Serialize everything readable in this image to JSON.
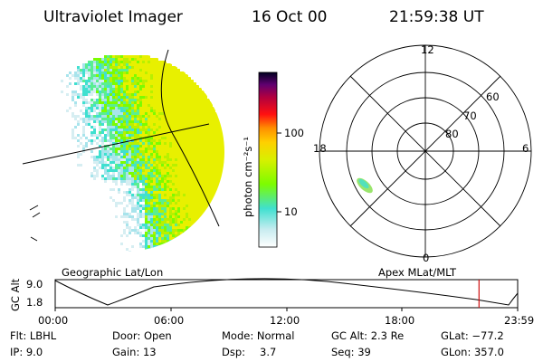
{
  "header": {
    "instrument": "Ultraviolet Imager",
    "date": "16 Oct 00",
    "time": "21:59:38 UT"
  },
  "colorbar": {
    "unit_label": "photon cm⁻²s⁻¹",
    "ticks": [
      "100",
      "10"
    ],
    "levels": [
      100,
      10
    ]
  },
  "polar_plot": {
    "mlt_labels": [
      "12",
      "18",
      "6",
      "0"
    ],
    "lat_labels": [
      "60",
      "70",
      "80"
    ]
  },
  "timeline": {
    "left_label": "Geographic Lat/Lon",
    "right_label": "Apex MLat/MLT",
    "y_axis_label": "GC Alt",
    "y_ticks": [
      "9.0",
      "1.8"
    ],
    "x_ticks": [
      "00:00",
      "06:00",
      "12:00",
      "18:00",
      "23:59"
    ],
    "current_time_marker": "21:59:38",
    "current_time_fraction": 0.9164
  },
  "footer": {
    "row1": {
      "flt": "Flt: LBHL",
      "door": "Door: Open",
      "mode": "Mode: Normal",
      "gcalt": "GC Alt: 2.3 Re",
      "glat": "GLat: −77.2"
    },
    "row2": {
      "ip": "IP:  9.0",
      "gain": "Gain: 13",
      "dsp_label": "Dsp:",
      "dsp_value": "3.7",
      "seq": "Seq: 39",
      "glon": "GLon: 357.0"
    }
  },
  "colors": {
    "marker": "#d01010",
    "palette": [
      "#ffffff",
      "#c8ecf0",
      "#40e0d0",
      "#7cfc00",
      "#f0f000",
      "#ffa500",
      "#ff0000",
      "#b00040",
      "#600070",
      "#000020"
    ]
  }
}
